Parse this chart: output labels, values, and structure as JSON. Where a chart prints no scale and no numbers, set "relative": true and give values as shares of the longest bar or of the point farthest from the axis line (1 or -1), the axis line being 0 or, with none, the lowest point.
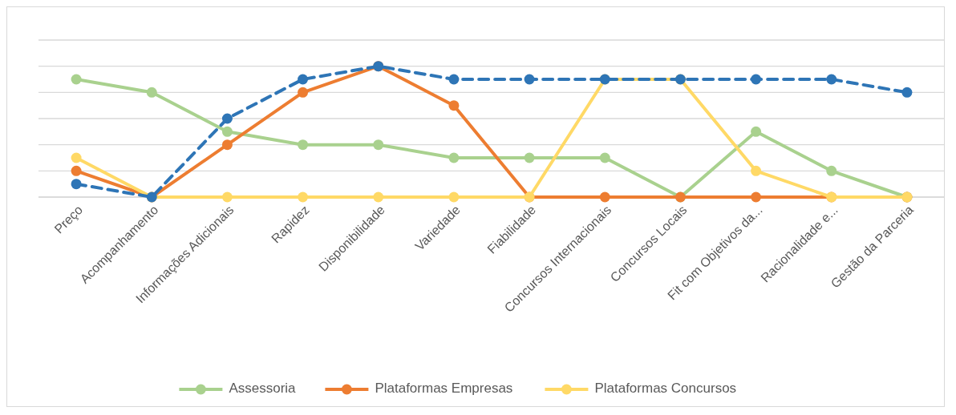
{
  "chart_data": {
    "type": "line",
    "relative": true,
    "grid": "y",
    "legend": "bottom",
    "marker": "circle",
    "categories": [
      "Preço",
      "Acompanhamento",
      "Informações Adicionais",
      "Rapidez",
      "Disponibilidade",
      "Variedade",
      "Fiabilidade",
      "Concursos Internacionais",
      "Concursos Locais",
      "Fit com Objetivos da...",
      "Racionalidade e...",
      "Gestão da Parceria"
    ],
    "series": [
      {
        "name": "Assessoria",
        "color": "#a9d18e",
        "values": [
          0.9,
          0.8,
          0.5,
          0.4,
          0.4,
          0.3,
          0.3,
          0.3,
          0,
          0.5,
          0.2,
          0
        ]
      },
      {
        "name": "Plataformas Empresas",
        "color": "#ed7d31",
        "values": [
          0.2,
          0,
          0.4,
          0.8,
          1,
          0.7,
          0,
          0,
          0,
          0,
          0,
          0
        ]
      },
      {
        "name": "Plataformas Concursos",
        "color": "#ffd966",
        "values": [
          0.3,
          0,
          0,
          0,
          0,
          0,
          0,
          0.9,
          0.9,
          0.2,
          0,
          0
        ]
      },
      {
        "color": "#2e75b6",
        "line_style": "dashed",
        "values": [
          0.1,
          0,
          0.6,
          0.9,
          1,
          0.9,
          0.9,
          0.9,
          0.9,
          0.9,
          0.9,
          0.8
        ]
      }
    ]
  }
}
